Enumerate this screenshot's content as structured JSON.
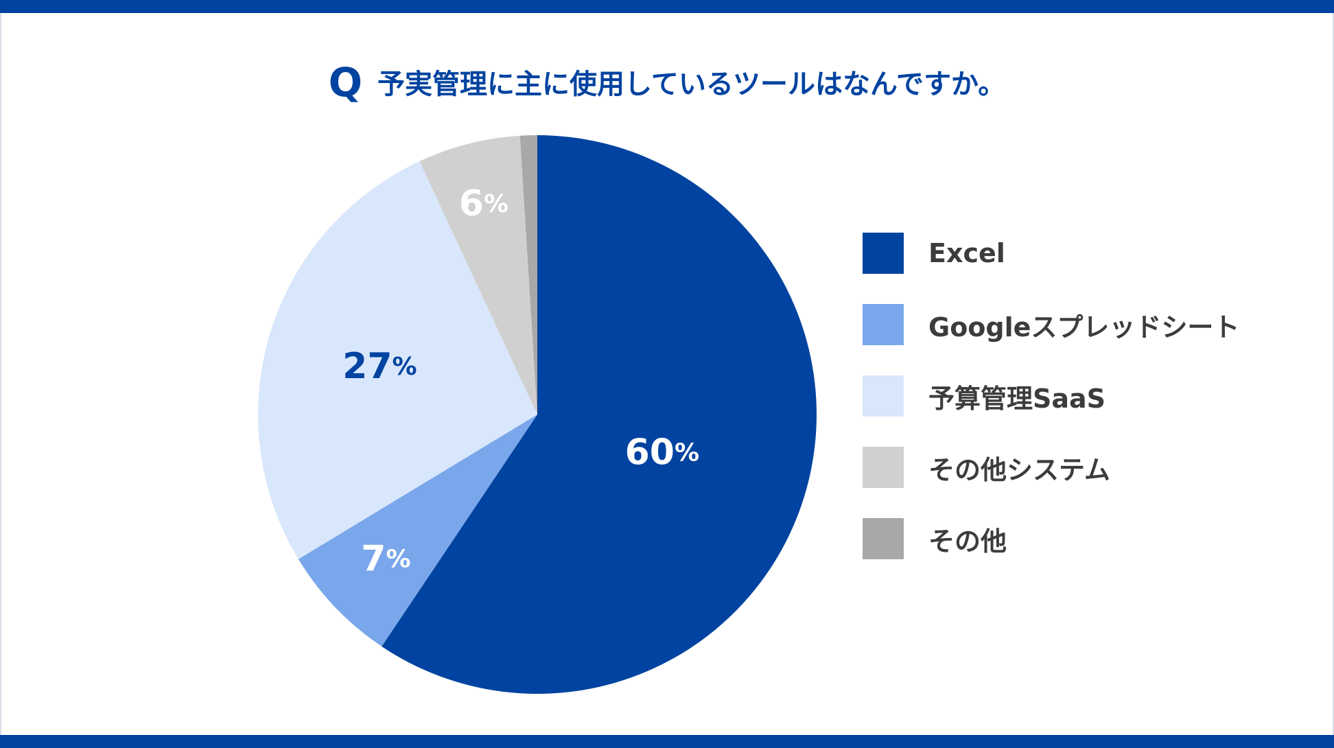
{
  "title": {
    "prefix": "Q",
    "question": "予実管理に主に使用しているツールはなんですか。"
  },
  "chart_data": {
    "type": "pie",
    "title": "予実管理に主に使用しているツールはなんですか。",
    "slices": [
      {
        "label": "Excel",
        "value": 60,
        "display": "60%",
        "color": "#0043a0",
        "label_color": "#ffffff"
      },
      {
        "label": "Googleスプレッドシート",
        "value": 7,
        "display": "7%",
        "color": "#7aa7eb",
        "label_color": "#ffffff"
      },
      {
        "label": "予算管理SaaS",
        "value": 27,
        "display": "27%",
        "color": "#d9e7fc",
        "label_color": "#0043a0"
      },
      {
        "label": "その他システム",
        "value": 6,
        "display": "6%",
        "color": "#d0d0d0",
        "label_color": "#ffffff"
      },
      {
        "label": "その他",
        "value": 1,
        "display": "",
        "color": "#a8a8a8",
        "label_color": "#ffffff"
      }
    ],
    "start_angle_deg": 0,
    "direction": "clockwise",
    "legend_position": "right"
  }
}
